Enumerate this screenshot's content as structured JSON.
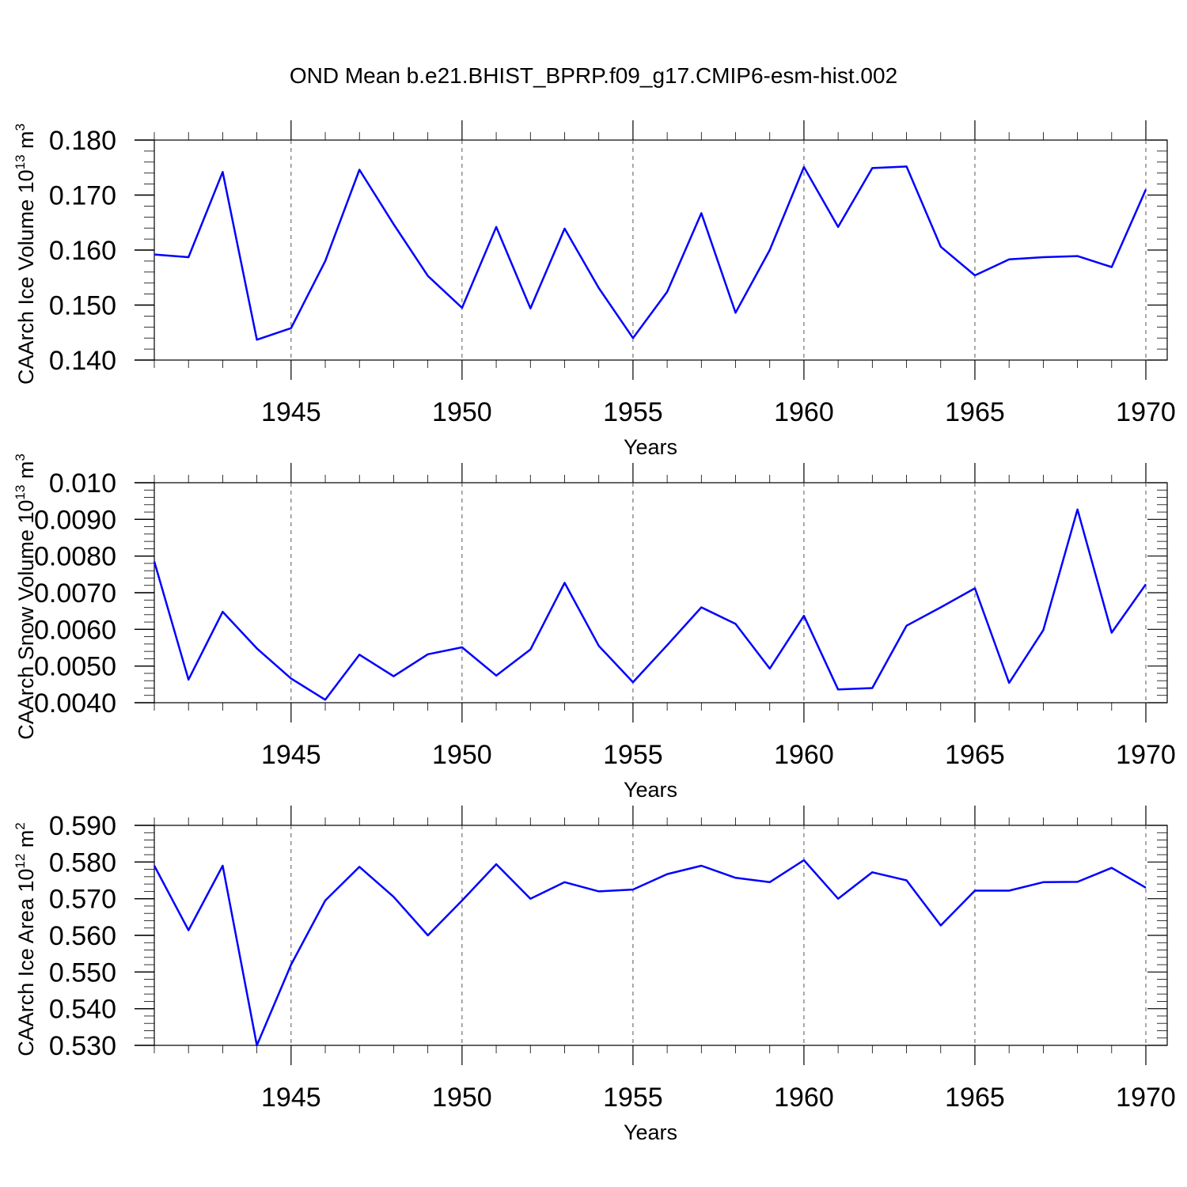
{
  "title": "OND Mean b.e21.BHIST_BPRP.f09_g17.CMIP6-esm-hist.002",
  "line_color": "#0000ff",
  "chart_data": [
    {
      "type": "line",
      "name": "ice-volume",
      "ylabel_prefix": "CAArch Ice Volume 10",
      "ylabel_exp": "13",
      "ylabel_unit": " m",
      "ylabel_unit_exp": "3",
      "xlabel": "Years",
      "xlim": [
        1941,
        1970
      ],
      "ylim": [
        0.14,
        0.18
      ],
      "yticks": [
        0.14,
        0.15,
        0.16,
        0.17,
        0.18
      ],
      "ytick_labels": [
        "0.140",
        "0.150",
        "0.160",
        "0.170",
        "0.180"
      ],
      "xticks": [
        1945,
        1950,
        1955,
        1960,
        1965,
        1970
      ],
      "xtick_labels": [
        "1945",
        "1950",
        "1955",
        "1960",
        "1965",
        "1970"
      ],
      "x": [
        1941,
        1942,
        1943,
        1944,
        1945,
        1946,
        1947,
        1948,
        1949,
        1950,
        1951,
        1952,
        1953,
        1954,
        1955,
        1956,
        1957,
        1958,
        1959,
        1960,
        1961,
        1962,
        1963,
        1964,
        1965,
        1966,
        1967,
        1968,
        1969,
        1970
      ],
      "y": [
        0.1592,
        0.1587,
        0.1742,
        0.1437,
        0.1458,
        0.158,
        0.1746,
        0.1647,
        0.1553,
        0.1495,
        0.1642,
        0.1494,
        0.1639,
        0.1531,
        0.144,
        0.1524,
        0.1667,
        0.1486,
        0.16,
        0.1751,
        0.1642,
        0.1749,
        0.1752,
        0.1606,
        0.1554,
        0.1583,
        0.1587,
        0.1589,
        0.1569,
        0.171
      ]
    },
    {
      "type": "line",
      "name": "snow-volume",
      "ylabel_prefix": "CAArch Snow Volume 10",
      "ylabel_exp": "13",
      "ylabel_unit": " m",
      "ylabel_unit_exp": "3",
      "xlabel": "Years",
      "xlim": [
        1941,
        1970
      ],
      "ylim": [
        0.004,
        0.01
      ],
      "yticks": [
        0.004,
        0.005,
        0.006,
        0.007,
        0.008,
        0.009,
        0.01
      ],
      "ytick_labels": [
        "0.0040",
        "0.0050",
        "0.0060",
        "0.0070",
        "0.0080",
        "0.0090",
        "0.010"
      ],
      "xticks": [
        1945,
        1950,
        1955,
        1960,
        1965,
        1970
      ],
      "xtick_labels": [
        "1945",
        "1950",
        "1955",
        "1960",
        "1965",
        "1970"
      ],
      "x": [
        1941,
        1942,
        1943,
        1944,
        1945,
        1946,
        1947,
        1948,
        1949,
        1950,
        1951,
        1952,
        1953,
        1954,
        1955,
        1956,
        1957,
        1958,
        1959,
        1960,
        1961,
        1962,
        1963,
        1964,
        1965,
        1966,
        1967,
        1968,
        1969,
        1970
      ],
      "y": [
        0.00785,
        0.00463,
        0.00648,
        0.00548,
        0.00466,
        0.00408,
        0.00531,
        0.00472,
        0.00532,
        0.00551,
        0.00474,
        0.00545,
        0.00727,
        0.00555,
        0.00456,
        0.00557,
        0.0066,
        0.00615,
        0.00493,
        0.00637,
        0.00436,
        0.0044,
        0.0061,
        0.0066,
        0.00712,
        0.00454,
        0.00598,
        0.00927,
        0.00591,
        0.00723
      ]
    },
    {
      "type": "line",
      "name": "ice-area",
      "ylabel_prefix": "CAArch Ice Area 10",
      "ylabel_exp": "12",
      "ylabel_unit": " m",
      "ylabel_unit_exp": "2",
      "xlabel": "Years",
      "xlim": [
        1941,
        1970
      ],
      "ylim": [
        0.53,
        0.59
      ],
      "yticks": [
        0.53,
        0.54,
        0.55,
        0.56,
        0.57,
        0.58,
        0.59
      ],
      "ytick_labels": [
        "0.530",
        "0.540",
        "0.550",
        "0.560",
        "0.570",
        "0.580",
        "0.590"
      ],
      "xticks": [
        1945,
        1950,
        1955,
        1960,
        1965,
        1970
      ],
      "xtick_labels": [
        "1945",
        "1950",
        "1955",
        "1960",
        "1965",
        "1970"
      ],
      "x": [
        1941,
        1942,
        1943,
        1944,
        1945,
        1946,
        1947,
        1948,
        1949,
        1950,
        1951,
        1952,
        1953,
        1954,
        1955,
        1956,
        1957,
        1958,
        1959,
        1960,
        1961,
        1962,
        1963,
        1964,
        1965,
        1966,
        1967,
        1968,
        1969,
        1970
      ],
      "y": [
        0.579,
        0.5614,
        0.579,
        0.53,
        0.552,
        0.5695,
        0.5787,
        0.5705,
        0.56,
        0.5695,
        0.5794,
        0.57,
        0.5745,
        0.572,
        0.5725,
        0.5767,
        0.579,
        0.5757,
        0.5745,
        0.5805,
        0.57,
        0.5772,
        0.575,
        0.5627,
        0.5722,
        0.5722,
        0.5745,
        0.5746,
        0.5784,
        0.573
      ]
    }
  ]
}
